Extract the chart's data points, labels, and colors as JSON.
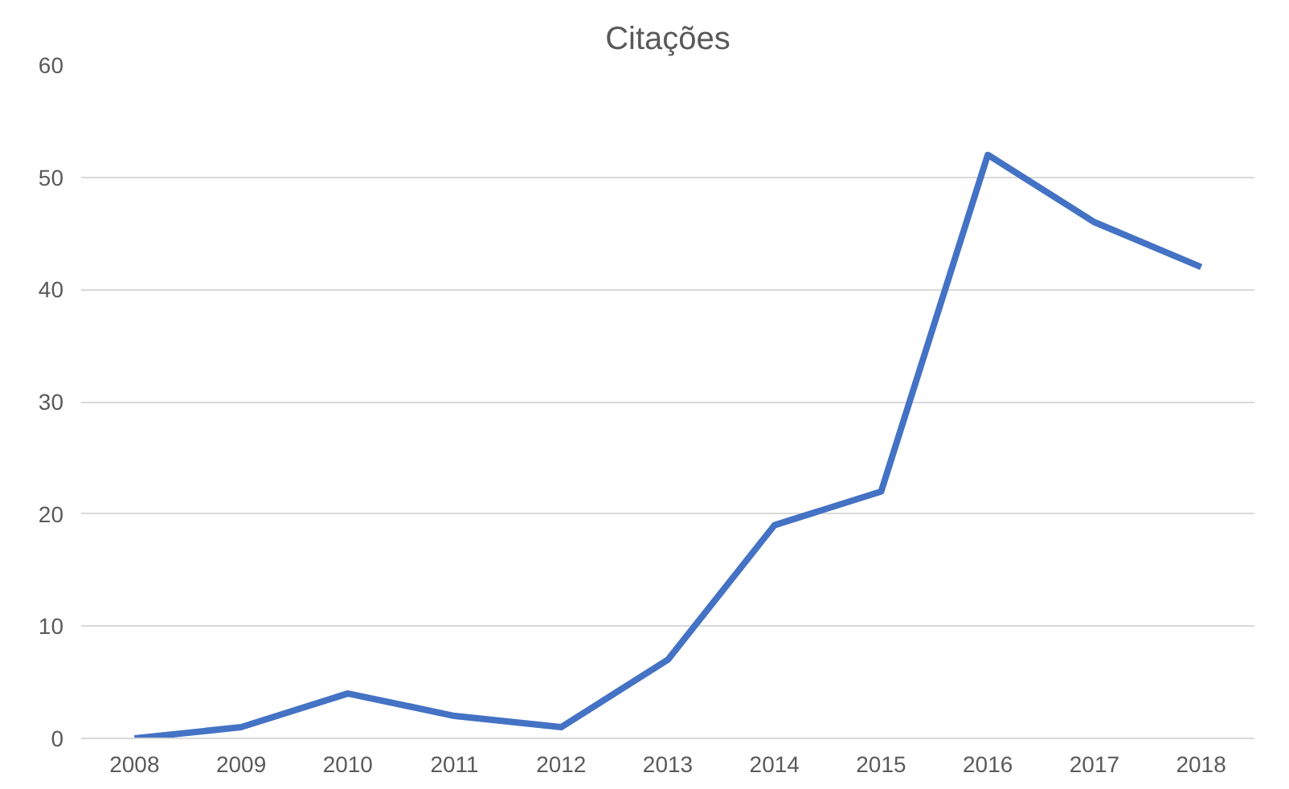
{
  "chart_data": {
    "type": "line",
    "title": "Citações",
    "categories": [
      "2008",
      "2009",
      "2010",
      "2011",
      "2012",
      "2013",
      "2014",
      "2015",
      "2016",
      "2017",
      "2018"
    ],
    "series": [
      {
        "color": "#4472c4",
        "values": [
          0,
          1,
          4,
          2,
          1,
          7,
          19,
          22,
          52,
          46,
          42
        ]
      }
    ],
    "ylim": [
      0,
      60
    ],
    "yticks": [
      0,
      10,
      20,
      30,
      40,
      50,
      60
    ],
    "grid": "y",
    "marker": "none",
    "line_style": "solid"
  }
}
